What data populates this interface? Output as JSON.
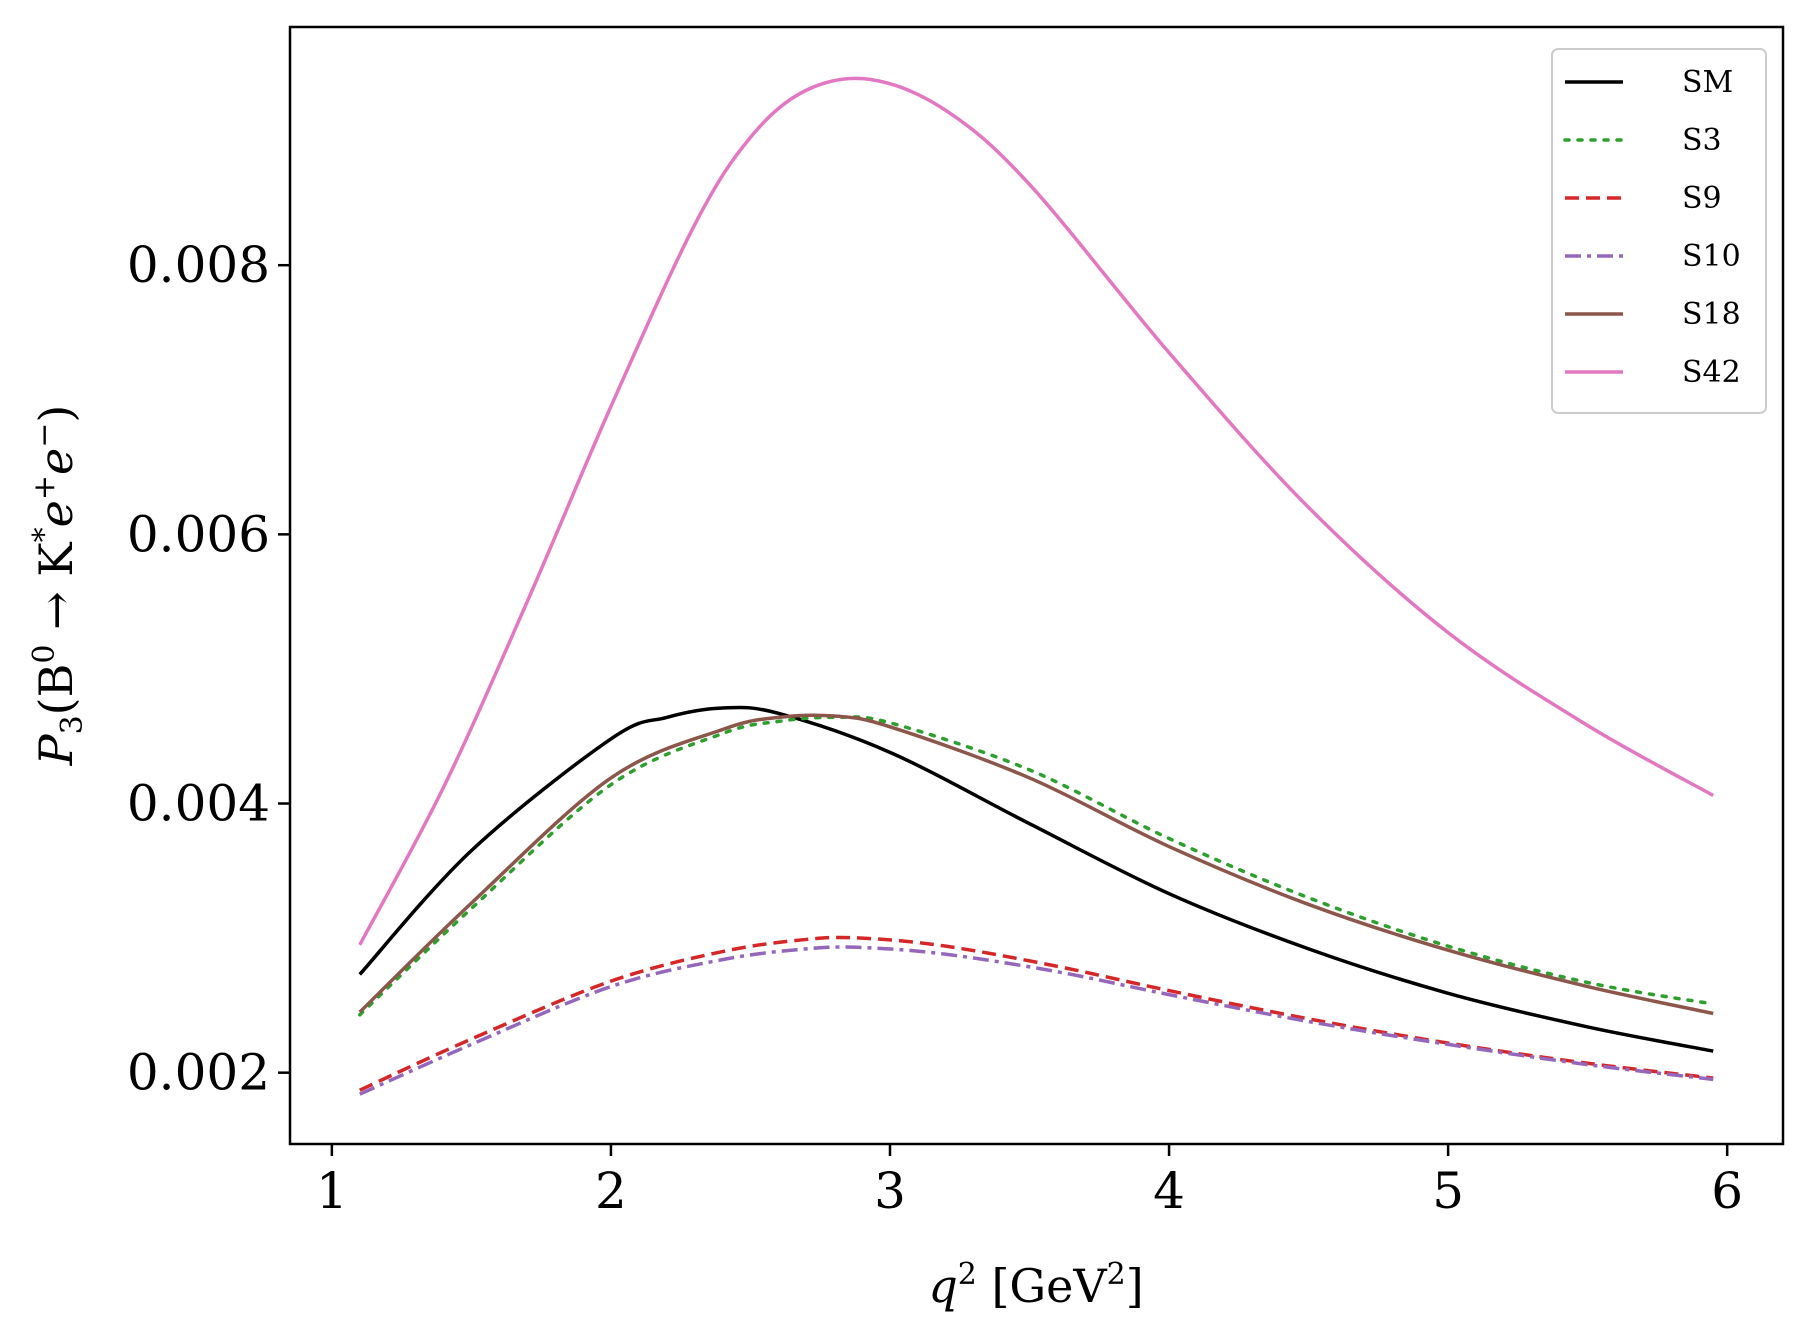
{
  "chart_data": {
    "type": "line",
    "title": "",
    "xlabel": {
      "main": "q",
      "sup": "2",
      "unit_open": " [GeV",
      "unit_sup": "2",
      "unit_close": "]"
    },
    "ylabel": {
      "main": "P",
      "sub": "3",
      "rest": "(B",
      "b_sup": "0",
      "arrow": " → K",
      "k_sup": "*",
      "e1": "e",
      "e1_sup": "+",
      "e2": "e",
      "e2_sup": "−",
      "close": ")"
    },
    "xlim": [
      0.85,
      6.2
    ],
    "ylim": [
      0.00147,
      0.00977
    ],
    "xticks": [
      1,
      2,
      3,
      4,
      5,
      6
    ],
    "xtick_labels": [
      "1",
      "2",
      "3",
      "4",
      "5",
      "6"
    ],
    "yticks": [
      0.002,
      0.004,
      0.006,
      0.008
    ],
    "ytick_labels": [
      "0.002",
      "0.004",
      "0.006",
      "0.008"
    ],
    "legend_position": "top-right",
    "series": [
      {
        "name": "SM",
        "color": "#000000",
        "dash": "solid",
        "x": [
          1.1,
          1.5,
          2.0,
          2.2,
          2.4,
          2.6,
          3.0,
          3.5,
          4.0,
          4.5,
          5.0,
          5.5,
          5.95
        ],
        "y": [
          0.00273,
          0.00365,
          0.00448,
          0.00464,
          0.00471,
          0.00467,
          0.00438,
          0.00385,
          0.00333,
          0.00292,
          0.00259,
          0.00234,
          0.00216
        ]
      },
      {
        "name": "S3",
        "color": "#2ca02c",
        "dash": "dotted",
        "x": [
          1.1,
          1.5,
          2.0,
          2.4,
          2.6,
          2.8,
          3.0,
          3.5,
          4.0,
          4.5,
          5.0,
          5.5,
          5.95
        ],
        "y": [
          0.00243,
          0.00322,
          0.00414,
          0.00452,
          0.00461,
          0.00464,
          0.0046,
          0.00425,
          0.00374,
          0.0033,
          0.00294,
          0.00267,
          0.00251
        ]
      },
      {
        "name": "S9",
        "color": "#d62728",
        "dash": "dashed",
        "x": [
          1.1,
          1.5,
          2.0,
          2.4,
          2.7,
          2.9,
          3.2,
          3.6,
          4.0,
          4.5,
          5.0,
          5.5,
          5.95
        ],
        "y": [
          0.00187,
          0.00225,
          0.00268,
          0.0029,
          0.00299,
          0.003,
          0.00294,
          0.00279,
          0.00261,
          0.0024,
          0.00222,
          0.00207,
          0.00196
        ]
      },
      {
        "name": "S10",
        "color": "#9467bd",
        "dash": "dashdot",
        "x": [
          1.1,
          1.5,
          2.0,
          2.4,
          2.7,
          2.9,
          3.2,
          3.6,
          4.0,
          4.5,
          5.0,
          5.5,
          5.95
        ],
        "y": [
          0.00184,
          0.00221,
          0.00264,
          0.00284,
          0.00292,
          0.00293,
          0.00288,
          0.00275,
          0.00258,
          0.00238,
          0.00221,
          0.00206,
          0.00195
        ]
      },
      {
        "name": "S18",
        "color": "#8c564b",
        "dash": "solid",
        "x": [
          1.1,
          1.5,
          2.0,
          2.4,
          2.6,
          2.8,
          3.0,
          3.5,
          4.0,
          4.5,
          5.0,
          5.5,
          5.95
        ],
        "y": [
          0.00245,
          0.00326,
          0.00419,
          0.00455,
          0.00464,
          0.00465,
          0.00457,
          0.00419,
          0.00368,
          0.00325,
          0.00291,
          0.00264,
          0.00244
        ]
      },
      {
        "name": "S42",
        "color": "#e377c2",
        "dash": "solid",
        "x": [
          1.1,
          1.4,
          1.7,
          2.0,
          2.3,
          2.5,
          2.7,
          2.93,
          3.2,
          3.5,
          4.0,
          4.5,
          5.0,
          5.5,
          5.95
        ],
        "y": [
          0.00295,
          0.00412,
          0.0055,
          0.00695,
          0.0083,
          0.00895,
          0.0093,
          0.00938,
          0.00915,
          0.0086,
          0.00735,
          0.0062,
          0.00527,
          0.00458,
          0.00406
        ]
      }
    ]
  }
}
